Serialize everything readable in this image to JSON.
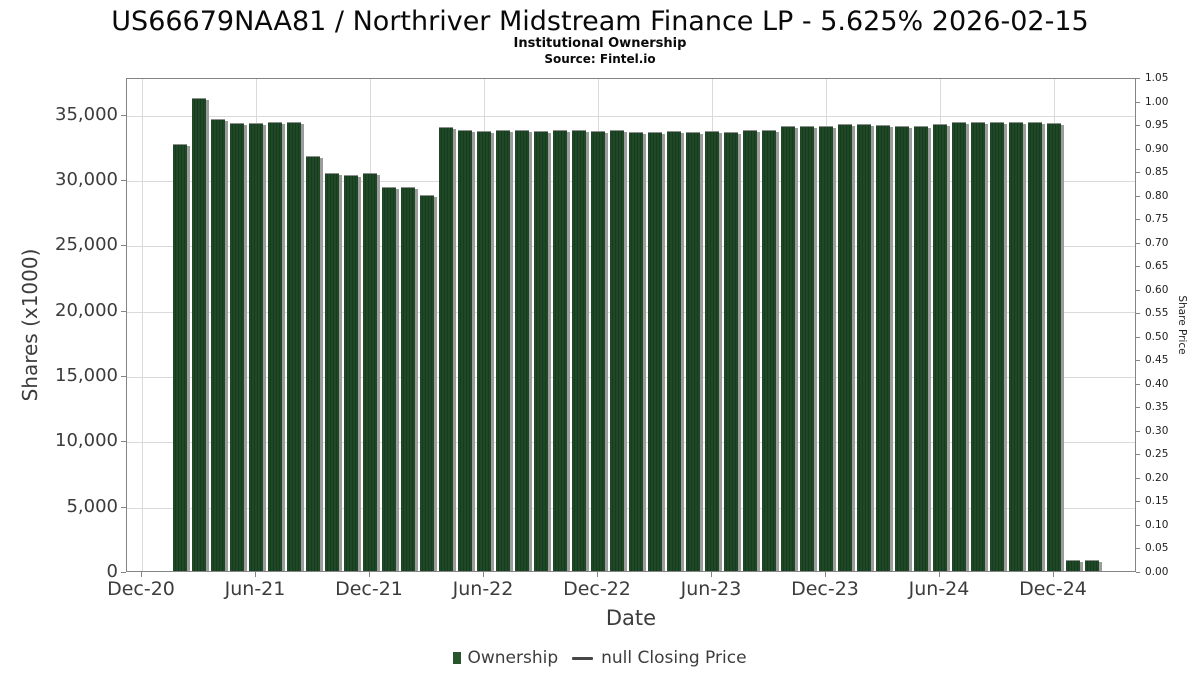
{
  "header": {
    "title": "US66679NAA81 / Northriver Midstream Finance LP - 5.625% 2026-02-15",
    "subtitle": "Institutional Ownership",
    "source": "Source: Fintel.io"
  },
  "chart_data": {
    "type": "bar",
    "title": "US66679NAA81 / Northriver Midstream Finance LP - 5.625% 2026-02-15",
    "subtitle": "Institutional Ownership",
    "source": "Source: Fintel.io",
    "xlabel": "Date",
    "ylabel_left": "Shares (x1000)",
    "ylabel_right": "Share Price",
    "ylim_left": [
      0,
      37800
    ],
    "ylim_right": [
      0,
      1.05
    ],
    "grid": true,
    "legend_position": "bottom",
    "bar_color": "#1f4827",
    "shadow_color": "#9c9c9c",
    "x_tick_labels": [
      "Dec-20",
      "Jun-21",
      "Dec-21",
      "Jun-22",
      "Dec-22",
      "Jun-23",
      "Dec-23",
      "Jun-24",
      "Dec-24"
    ],
    "y_left_ticks": [
      {
        "label": "0",
        "value": 0
      },
      {
        "label": "5,000",
        "value": 5000
      },
      {
        "label": "10,000",
        "value": 10000
      },
      {
        "label": "15,000",
        "value": 15000
      },
      {
        "label": "20,000",
        "value": 20000
      },
      {
        "label": "25,000",
        "value": 25000
      },
      {
        "label": "30,000",
        "value": 30000
      },
      {
        "label": "35,000",
        "value": 35000
      }
    ],
    "y_right_ticks": [
      {
        "label": "0.00",
        "value": 0.0
      },
      {
        "label": "0.05",
        "value": 0.05
      },
      {
        "label": "0.10",
        "value": 0.1
      },
      {
        "label": "0.15",
        "value": 0.15
      },
      {
        "label": "0.20",
        "value": 0.2
      },
      {
        "label": "0.25",
        "value": 0.25
      },
      {
        "label": "0.30",
        "value": 0.3
      },
      {
        "label": "0.35",
        "value": 0.35
      },
      {
        "label": "0.40",
        "value": 0.4
      },
      {
        "label": "0.45",
        "value": 0.45
      },
      {
        "label": "0.50",
        "value": 0.5
      },
      {
        "label": "0.55",
        "value": 0.55
      },
      {
        "label": "0.60",
        "value": 0.6
      },
      {
        "label": "0.65",
        "value": 0.65
      },
      {
        "label": "0.70",
        "value": 0.7
      },
      {
        "label": "0.75",
        "value": 0.75
      },
      {
        "label": "0.80",
        "value": 0.8
      },
      {
        "label": "0.85",
        "value": 0.85
      },
      {
        "label": "0.90",
        "value": 0.9
      },
      {
        "label": "0.95",
        "value": 0.95
      },
      {
        "label": "1.00",
        "value": 1.0
      },
      {
        "label": "1.05",
        "value": 1.05
      }
    ],
    "categories": [
      "Feb-21",
      "Mar-21",
      "Apr-21",
      "May-21",
      "Jun-21",
      "Jul-21",
      "Aug-21",
      "Sep-21",
      "Oct-21",
      "Nov-21",
      "Dec-21",
      "Jan-22",
      "Feb-22",
      "Mar-22",
      "Apr-22",
      "May-22",
      "Jun-22",
      "Jul-22",
      "Aug-22",
      "Sep-22",
      "Oct-22",
      "Nov-22",
      "Dec-22",
      "Jan-23",
      "Feb-23",
      "Mar-23",
      "Apr-23",
      "May-23",
      "Jun-23",
      "Jul-23",
      "Aug-23",
      "Sep-23",
      "Oct-23",
      "Nov-23",
      "Dec-23",
      "Jan-24",
      "Feb-24",
      "Mar-24",
      "Apr-24",
      "May-24",
      "Jun-24",
      "Jul-24",
      "Aug-24",
      "Sep-24",
      "Oct-24",
      "Nov-24",
      "Dec-24",
      "Jan-25",
      "Feb-25"
    ],
    "series": [
      {
        "name": "Ownership",
        "type": "bar",
        "values": [
          32600,
          36100,
          34500,
          34200,
          34200,
          34250,
          34250,
          31700,
          30400,
          30200,
          30400,
          29300,
          29300,
          28700,
          33900,
          33700,
          33600,
          33700,
          33700,
          33600,
          33700,
          33700,
          33600,
          33700,
          33550,
          33550,
          33600,
          33550,
          33600,
          33550,
          33700,
          33700,
          34000,
          34000,
          34000,
          34100,
          34100,
          34050,
          34000,
          34000,
          34100,
          34300,
          34300,
          34300,
          34300,
          34300,
          34200,
          800,
          800
        ]
      },
      {
        "name": "null Closing Price",
        "type": "line",
        "values": []
      }
    ],
    "legend": [
      {
        "label": "Ownership",
        "marker": "square"
      },
      {
        "label": "null Closing Price",
        "marker": "line"
      }
    ]
  }
}
